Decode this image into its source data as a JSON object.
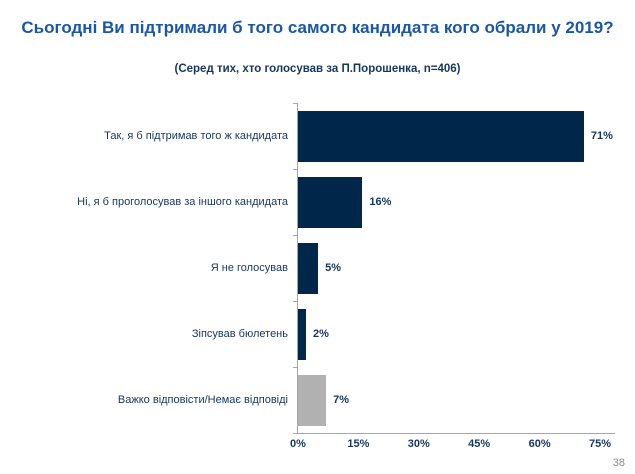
{
  "page": {
    "number": "38"
  },
  "chart_data": {
    "type": "bar",
    "orientation": "horizontal",
    "title": "Сьогодні Ви підтримали б того самого кандидата кого обрали у 2019?",
    "subtitle": "(Серед тих, хто голосував за П.Порошенка, n=406)",
    "categories": [
      "Так, я б підтримав того ж кандидата",
      "Ні, я б проголосував за іншого кандидата",
      "Я не голосував",
      "Зіпсував бюлетень",
      "Важко відповісти/Немає відповіді"
    ],
    "values": [
      71,
      16,
      5,
      2,
      7
    ],
    "value_labels": [
      "71%",
      "16%",
      "5%",
      "2%",
      "7%"
    ],
    "bar_colors": [
      "#00264A",
      "#00264A",
      "#00264A",
      "#00264A",
      "#B1B1B1"
    ],
    "xlim": [
      0,
      75
    ],
    "x_ticks": [
      {
        "value": 0,
        "label": "0%"
      },
      {
        "value": 15,
        "label": "15%"
      },
      {
        "value": 30,
        "label": "30%"
      },
      {
        "value": 45,
        "label": "45%"
      },
      {
        "value": 60,
        "label": "60%"
      },
      {
        "value": 75,
        "label": "75%"
      }
    ],
    "grid": false,
    "legend": false
  },
  "colors": {
    "title": "#1B57A8",
    "text": "#17365D",
    "bar_navy": "#00264A",
    "bar_gray": "#B1B1B1",
    "axis_line": "#A6A6A6",
    "page_number": "#8A8A8A"
  }
}
